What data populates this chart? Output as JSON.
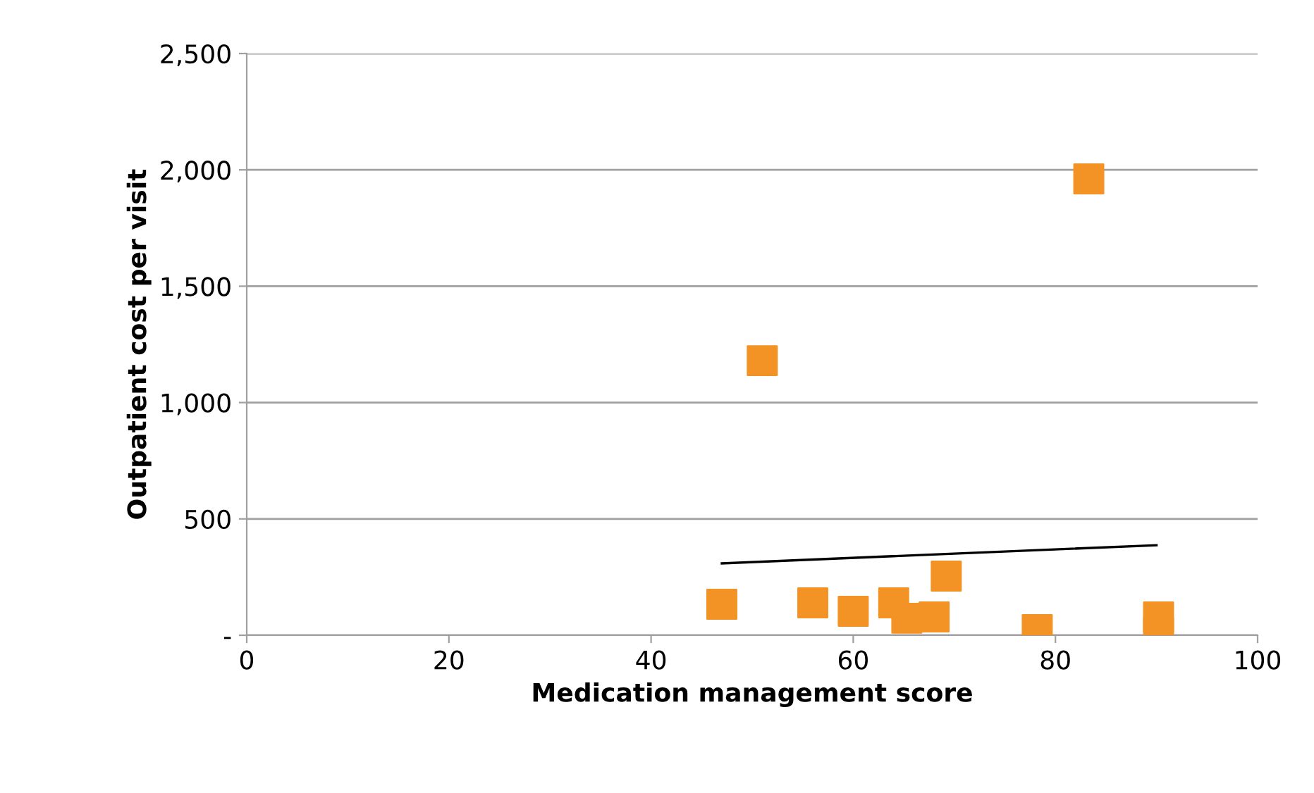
{
  "chart_data": {
    "type": "scatter",
    "xlabel": "Medication management score",
    "ylabel": "Outpatient cost per visit",
    "xlim": [
      0,
      100
    ],
    "xticks": [
      0,
      20,
      40,
      60,
      80,
      100
    ],
    "ylim": [
      0,
      2500
    ],
    "yticks": [
      {
        "value": 0,
        "label": "-"
      },
      {
        "value": 500,
        "label": "500"
      },
      {
        "value": 1000,
        "label": "1,000"
      },
      {
        "value": 1500,
        "label": "1,500"
      },
      {
        "value": 2000,
        "label": "2,000"
      },
      {
        "value": 2500,
        "label": "2,500"
      }
    ],
    "grid": "y",
    "series": [
      {
        "marker": "square",
        "color": "#f39325",
        "x": [
          47,
          51,
          56,
          60,
          64,
          65.3,
          68,
          69.2,
          78.2,
          83.3,
          90.2,
          90.2
        ],
        "values": [
          133,
          1180,
          139,
          103,
          139,
          73,
          79,
          254,
          24,
          1961,
          79,
          12
        ]
      },
      {
        "type": "line",
        "marker": "none",
        "color": "#000000",
        "x": [
          47,
          90
        ],
        "values": [
          309,
          387
        ]
      }
    ]
  }
}
